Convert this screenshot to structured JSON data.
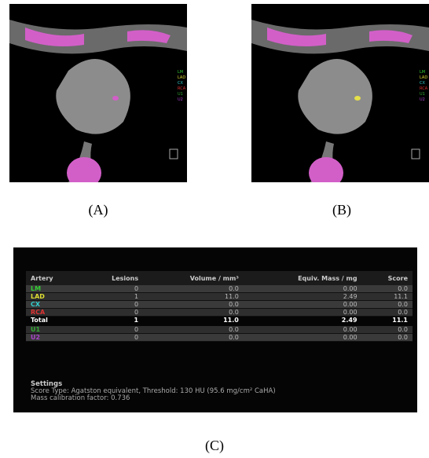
{
  "images": [
    {
      "label": "(A)",
      "legend": [
        "LM",
        "LAD",
        "CX",
        "RCA",
        "U1",
        "U2"
      ]
    },
    {
      "label": "(B)",
      "legend": [
        "LM",
        "LAD",
        "CX",
        "RCA",
        "U1",
        "U2"
      ]
    }
  ],
  "panel": {
    "label": "(C)",
    "table": {
      "header": [
        "Artery",
        "Lesions",
        "Volume / mm³",
        "Equiv. Mass / mg",
        "Score"
      ],
      "rows": [
        [
          "LM",
          "0",
          "0.0",
          "0.00",
          "0.0"
        ],
        [
          "LAD",
          "1",
          "11.0",
          "2.49",
          "11.1"
        ],
        [
          "CX",
          "0",
          "0.0",
          "0.00",
          "0.0"
        ],
        [
          "RCA",
          "0",
          "0.0",
          "0.00",
          "0.0"
        ],
        [
          "Total",
          "1",
          "11.0",
          "2.49",
          "11.1"
        ],
        [
          "U1",
          "0",
          "0.0",
          "0.00",
          "0.0"
        ],
        [
          "U2",
          "0",
          "0.0",
          "0.00",
          "0.0"
        ]
      ]
    },
    "settings": {
      "title": "Settings",
      "lines": [
        "Score Type: Agatston equivalent, Threshold: 130 HU (95.6 mg/cm² CaHA)",
        "Mass calibration factor: 0.736"
      ]
    }
  }
}
